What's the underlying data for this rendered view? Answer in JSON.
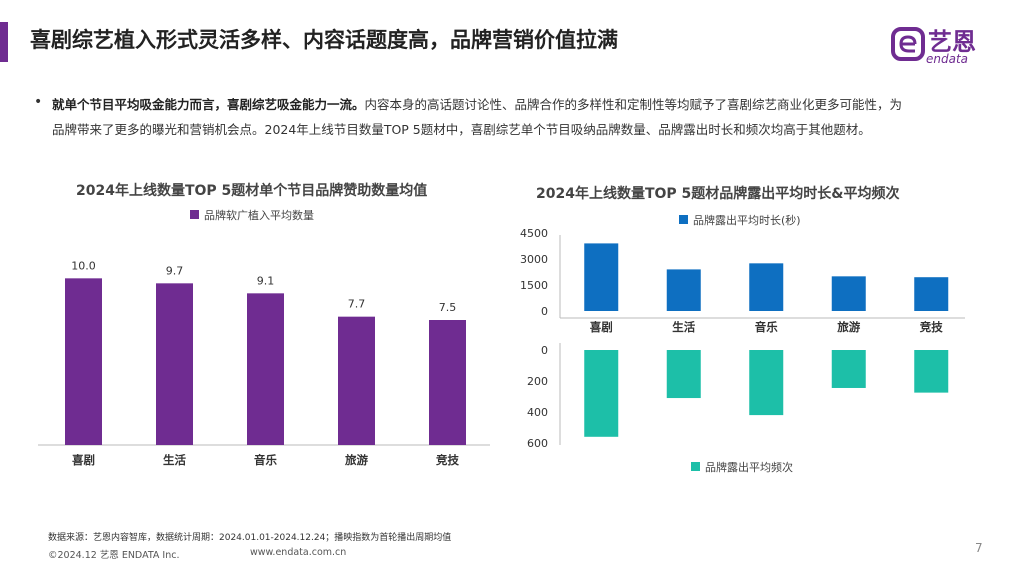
{
  "title": "喜剧综艺植入形式灵活多样、内容话题度高，品牌营销价值拉满",
  "logo": {
    "cn": "艺恩",
    "en": "endata"
  },
  "summary": {
    "bold": "就单个节目平均吸金能力而言，喜剧综艺吸金能力一流。",
    "rest": "内容本身的高话题讨论性、品牌合作的多样性和定制性等均赋予了喜剧综艺商业化更多可能性，为品牌带来了更多的曝光和营销机会点。2024年上线节目数量TOP 5题材中，喜剧综艺单个节目吸纳品牌数量、品牌露出时长和频次均高于其他题材。"
  },
  "colors": {
    "purple": "#6f2c91",
    "blue": "#0e6fc1",
    "teal": "#1dbfa8"
  },
  "chart_data": [
    {
      "type": "bar",
      "title": "2024年上线数量TOP 5题材单个节目品牌赞助数量均值",
      "categories": [
        "喜剧",
        "生活",
        "音乐",
        "旅游",
        "竞技"
      ],
      "series": [
        {
          "name": "品牌软广植入平均数量",
          "values": [
            10.0,
            9.7,
            9.1,
            7.7,
            7.5
          ]
        }
      ],
      "data_labels": [
        "10.0",
        "9.7",
        "9.1",
        "7.7",
        "7.5"
      ],
      "ylim": [
        0,
        10.5
      ],
      "legend": "top"
    },
    {
      "type": "bar",
      "title": "2024年上线数量TOP 5题材品牌露出平均时长&平均频次",
      "categories": [
        "喜剧",
        "生活",
        "音乐",
        "旅游",
        "竞技"
      ],
      "series": [
        {
          "name": "品牌露出平均时长(秒)",
          "values": [
            3900,
            2400,
            2750,
            2000,
            1950
          ],
          "ylim": [
            0,
            4500
          ],
          "ticks": [
            "4500",
            "3000",
            "1500",
            "0"
          ]
        },
        {
          "name": "品牌露出平均频次",
          "values": [
            560,
            310,
            420,
            245,
            275
          ],
          "ylim": [
            0,
            600
          ],
          "ticks": [
            "0",
            "200",
            "400",
            "600"
          ]
        }
      ],
      "legend": "top / bottom"
    }
  ],
  "footer": {
    "source": "数据来源：艺恩内容智库，数据统计周期：2024.01.01-2024.12.24；播映指数为首轮播出周期均值",
    "copyright": "©2024.12 艺恩 ENDATA Inc.",
    "url": "www.endata.com.cn",
    "page": "7"
  }
}
